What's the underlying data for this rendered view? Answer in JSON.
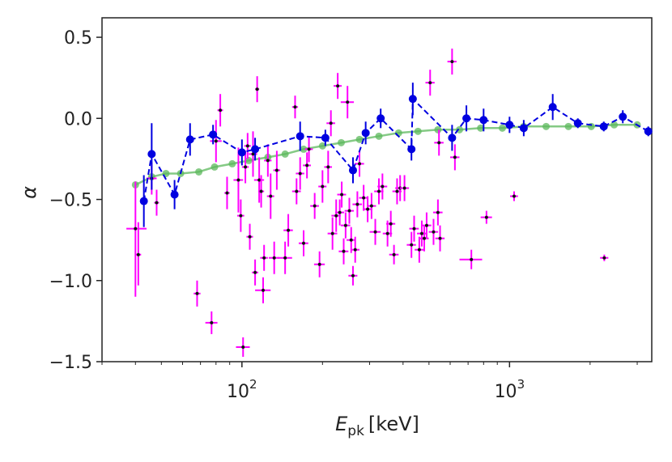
{
  "chart_data": {
    "type": "scatter",
    "title": "",
    "xlabel": "E_pk [keV]",
    "xlabel_main": "E",
    "xlabel_sub": "pk",
    "xlabel_unit": "[keV]",
    "ylabel": "α",
    "xscale": "log",
    "xlim": [
      30,
      3400
    ],
    "ylim": [
      -1.5,
      0.62
    ],
    "grid": false,
    "x_ticks": [
      {
        "value": 100,
        "base": "10",
        "exp": "2"
      },
      {
        "value": 1000,
        "base": "10",
        "exp": "3"
      }
    ],
    "y_ticks": [
      {
        "value": 0.5,
        "label": "0.5"
      },
      {
        "value": 0.0,
        "label": "0.0"
      },
      {
        "value": -0.5,
        "label": "−0.5"
      },
      {
        "value": -1.0,
        "label": "−1.0"
      },
      {
        "value": -1.5,
        "label": "−1.5"
      }
    ],
    "colors": {
      "points": "#ff00ff",
      "point_center": "#111111",
      "binned": "#0000e0",
      "smooth": "#5cb85c",
      "axes": "#222222"
    },
    "series": [
      {
        "kind": "points",
        "points": [
          {
            "x": 40,
            "y": -0.68,
            "xlo": 37,
            "xhi": 44,
            "ylo": -1.1,
            "yhi": -0.39
          },
          {
            "x": 41,
            "y": -0.84,
            "xlo": 40,
            "xhi": 42,
            "ylo": -1.03,
            "yhi": -0.64
          },
          {
            "x": 46,
            "y": -0.37,
            "xlo": 44,
            "xhi": 48,
            "ylo": -0.47,
            "yhi": -0.27
          },
          {
            "x": 48,
            "y": -0.52,
            "xlo": 47,
            "xhi": 49,
            "ylo": -0.6,
            "yhi": -0.44
          },
          {
            "x": 68,
            "y": -1.08,
            "xlo": 66,
            "xhi": 70,
            "ylo": -1.16,
            "yhi": -1.0
          },
          {
            "x": 77,
            "y": -1.26,
            "xlo": 73,
            "xhi": 81,
            "ylo": -1.33,
            "yhi": -1.19
          },
          {
            "x": 80,
            "y": -0.14,
            "xlo": 76,
            "xhi": 84,
            "ylo": -0.27,
            "yhi": -0.01
          },
          {
            "x": 83,
            "y": 0.05,
            "xlo": 81,
            "xhi": 85,
            "ylo": -0.05,
            "yhi": 0.15
          },
          {
            "x": 88,
            "y": -0.46,
            "xlo": 86,
            "xhi": 90,
            "ylo": -0.56,
            "yhi": -0.36
          },
          {
            "x": 97,
            "y": -0.38,
            "xlo": 93,
            "xhi": 101,
            "ylo": -0.58,
            "yhi": -0.18
          },
          {
            "x": 99,
            "y": -0.6,
            "xlo": 96,
            "xhi": 102,
            "ylo": -0.7,
            "yhi": -0.5
          },
          {
            "x": 101,
            "y": -1.41,
            "xlo": 95,
            "xhi": 107,
            "ylo": -1.47,
            "yhi": -1.35
          },
          {
            "x": 103,
            "y": -0.3,
            "xlo": 100,
            "xhi": 106,
            "ylo": -0.4,
            "yhi": -0.2
          },
          {
            "x": 105,
            "y": -0.17,
            "xlo": 102,
            "xhi": 108,
            "ylo": -0.25,
            "yhi": -0.09
          },
          {
            "x": 107,
            "y": -0.73,
            "xlo": 104,
            "xhi": 110,
            "ylo": -0.81,
            "yhi": -0.65
          },
          {
            "x": 110,
            "y": -0.22,
            "xlo": 106,
            "xhi": 114,
            "ylo": -0.36,
            "yhi": -0.08
          },
          {
            "x": 112,
            "y": -0.95,
            "xlo": 109,
            "xhi": 115,
            "ylo": -1.03,
            "yhi": -0.87
          },
          {
            "x": 114,
            "y": 0.18,
            "xlo": 112,
            "xhi": 116,
            "ylo": 0.1,
            "yhi": 0.26
          },
          {
            "x": 116,
            "y": -0.38,
            "xlo": 111,
            "xhi": 121,
            "ylo": -0.52,
            "yhi": -0.24
          },
          {
            "x": 118,
            "y": -0.45,
            "xlo": 115,
            "xhi": 121,
            "ylo": -0.55,
            "yhi": -0.35
          },
          {
            "x": 120,
            "y": -1.06,
            "xlo": 112,
            "xhi": 128,
            "ylo": -1.14,
            "yhi": -0.98
          },
          {
            "x": 121,
            "y": -0.86,
            "xlo": 117,
            "xhi": 125,
            "ylo": -0.94,
            "yhi": -0.78
          },
          {
            "x": 125,
            "y": -0.26,
            "xlo": 121,
            "xhi": 129,
            "ylo": -0.36,
            "yhi": -0.16
          },
          {
            "x": 128,
            "y": -0.48,
            "xlo": 124,
            "xhi": 132,
            "ylo": -0.62,
            "yhi": -0.34
          },
          {
            "x": 132,
            "y": -0.86,
            "xlo": 126,
            "xhi": 138,
            "ylo": -0.96,
            "yhi": -0.76
          },
          {
            "x": 135,
            "y": -0.32,
            "xlo": 131,
            "xhi": 139,
            "ylo": -0.44,
            "yhi": -0.2
          },
          {
            "x": 145,
            "y": -0.86,
            "xlo": 136,
            "xhi": 154,
            "ylo": -0.96,
            "yhi": -0.76
          },
          {
            "x": 149,
            "y": -0.69,
            "xlo": 143,
            "xhi": 155,
            "ylo": -0.79,
            "yhi": -0.59
          },
          {
            "x": 158,
            "y": 0.07,
            "xlo": 154,
            "xhi": 162,
            "ylo": 0.0,
            "yhi": 0.14
          },
          {
            "x": 160,
            "y": -0.45,
            "xlo": 154,
            "xhi": 166,
            "ylo": -0.53,
            "yhi": -0.37
          },
          {
            "x": 165,
            "y": -0.34,
            "xlo": 159,
            "xhi": 171,
            "ylo": -0.44,
            "yhi": -0.24
          },
          {
            "x": 170,
            "y": -0.77,
            "xlo": 163,
            "xhi": 177,
            "ylo": -0.85,
            "yhi": -0.69
          },
          {
            "x": 175,
            "y": -0.29,
            "xlo": 169,
            "xhi": 181,
            "ylo": -0.37,
            "yhi": -0.21
          },
          {
            "x": 178,
            "y": -0.19,
            "xlo": 172,
            "xhi": 184,
            "ylo": -0.27,
            "yhi": -0.11
          },
          {
            "x": 187,
            "y": -0.54,
            "xlo": 180,
            "xhi": 194,
            "ylo": -0.62,
            "yhi": -0.46
          },
          {
            "x": 195,
            "y": -0.9,
            "xlo": 186,
            "xhi": 204,
            "ylo": -0.98,
            "yhi": -0.82
          },
          {
            "x": 200,
            "y": -0.42,
            "xlo": 193,
            "xhi": 207,
            "ylo": -0.52,
            "yhi": -0.32
          },
          {
            "x": 210,
            "y": -0.3,
            "xlo": 203,
            "xhi": 217,
            "ylo": -0.4,
            "yhi": -0.2
          },
          {
            "x": 215,
            "y": -0.03,
            "xlo": 207,
            "xhi": 223,
            "ylo": -0.11,
            "yhi": 0.05
          },
          {
            "x": 218,
            "y": -0.71,
            "xlo": 209,
            "xhi": 227,
            "ylo": -0.81,
            "yhi": -0.61
          },
          {
            "x": 225,
            "y": -0.6,
            "xlo": 216,
            "xhi": 234,
            "ylo": -0.7,
            "yhi": -0.5
          },
          {
            "x": 228,
            "y": 0.2,
            "xlo": 220,
            "xhi": 236,
            "ylo": 0.12,
            "yhi": 0.28
          },
          {
            "x": 232,
            "y": -0.58,
            "xlo": 223,
            "xhi": 241,
            "ylo": -0.66,
            "yhi": -0.5
          },
          {
            "x": 236,
            "y": -0.47,
            "xlo": 227,
            "xhi": 245,
            "ylo": -0.55,
            "yhi": -0.39
          },
          {
            "x": 240,
            "y": -0.82,
            "xlo": 230,
            "xhi": 250,
            "ylo": -0.9,
            "yhi": -0.74
          },
          {
            "x": 244,
            "y": -0.66,
            "xlo": 234,
            "xhi": 254,
            "ylo": -0.74,
            "yhi": -0.58
          },
          {
            "x": 248,
            "y": 0.1,
            "xlo": 234,
            "xhi": 262,
            "ylo": 0.0,
            "yhi": 0.2
          },
          {
            "x": 252,
            "y": -0.57,
            "xlo": 242,
            "xhi": 262,
            "ylo": -0.65,
            "yhi": -0.49
          },
          {
            "x": 256,
            "y": -0.75,
            "xlo": 246,
            "xhi": 266,
            "ylo": -0.83,
            "yhi": -0.67
          },
          {
            "x": 260,
            "y": -0.97,
            "xlo": 250,
            "xhi": 270,
            "ylo": -1.03,
            "yhi": -0.91
          },
          {
            "x": 265,
            "y": -0.81,
            "xlo": 255,
            "xhi": 275,
            "ylo": -0.89,
            "yhi": -0.73
          },
          {
            "x": 270,
            "y": -0.53,
            "xlo": 259,
            "xhi": 281,
            "ylo": -0.61,
            "yhi": -0.45
          },
          {
            "x": 275,
            "y": -0.28,
            "xlo": 264,
            "xhi": 286,
            "ylo": -0.36,
            "yhi": -0.2
          },
          {
            "x": 285,
            "y": -0.49,
            "xlo": 274,
            "xhi": 296,
            "ylo": -0.57,
            "yhi": -0.41
          },
          {
            "x": 295,
            "y": -0.56,
            "xlo": 283,
            "xhi": 307,
            "ylo": -0.64,
            "yhi": -0.48
          },
          {
            "x": 305,
            "y": -0.54,
            "xlo": 293,
            "xhi": 317,
            "ylo": -0.62,
            "yhi": -0.46
          },
          {
            "x": 315,
            "y": -0.7,
            "xlo": 300,
            "xhi": 330,
            "ylo": -0.78,
            "yhi": -0.62
          },
          {
            "x": 325,
            "y": -0.45,
            "xlo": 312,
            "xhi": 338,
            "ylo": -0.53,
            "yhi": -0.37
          },
          {
            "x": 335,
            "y": -0.42,
            "xlo": 321,
            "xhi": 349,
            "ylo": -0.5,
            "yhi": -0.34
          },
          {
            "x": 350,
            "y": -0.71,
            "xlo": 336,
            "xhi": 364,
            "ylo": -0.79,
            "yhi": -0.63
          },
          {
            "x": 360,
            "y": -0.65,
            "xlo": 346,
            "xhi": 374,
            "ylo": -0.73,
            "yhi": -0.57
          },
          {
            "x": 370,
            "y": -0.84,
            "xlo": 355,
            "xhi": 385,
            "ylo": -0.9,
            "yhi": -0.78
          },
          {
            "x": 380,
            "y": -0.45,
            "xlo": 365,
            "xhi": 395,
            "ylo": -0.53,
            "yhi": -0.37
          },
          {
            "x": 390,
            "y": -0.43,
            "xlo": 374,
            "xhi": 406,
            "ylo": -0.51,
            "yhi": -0.35
          },
          {
            "x": 405,
            "y": -0.43,
            "xlo": 389,
            "xhi": 421,
            "ylo": -0.51,
            "yhi": -0.35
          },
          {
            "x": 430,
            "y": -0.78,
            "xlo": 413,
            "xhi": 447,
            "ylo": -0.86,
            "yhi": -0.7
          },
          {
            "x": 440,
            "y": -0.68,
            "xlo": 422,
            "xhi": 458,
            "ylo": -0.76,
            "yhi": -0.6
          },
          {
            "x": 460,
            "y": -0.81,
            "xlo": 442,
            "xhi": 478,
            "ylo": -0.89,
            "yhi": -0.73
          },
          {
            "x": 470,
            "y": -0.71,
            "xlo": 451,
            "xhi": 489,
            "ylo": -0.79,
            "yhi": -0.63
          },
          {
            "x": 480,
            "y": -0.74,
            "xlo": 461,
            "xhi": 499,
            "ylo": -0.82,
            "yhi": -0.66
          },
          {
            "x": 490,
            "y": -0.66,
            "xlo": 470,
            "xhi": 510,
            "ylo": -0.74,
            "yhi": -0.58
          },
          {
            "x": 505,
            "y": 0.22,
            "xlo": 485,
            "xhi": 525,
            "ylo": 0.14,
            "yhi": 0.3
          },
          {
            "x": 520,
            "y": -0.7,
            "xlo": 499,
            "xhi": 541,
            "ylo": -0.78,
            "yhi": -0.62
          },
          {
            "x": 540,
            "y": -0.58,
            "xlo": 518,
            "xhi": 562,
            "ylo": -0.66,
            "yhi": -0.5
          },
          {
            "x": 550,
            "y": -0.74,
            "xlo": 528,
            "xhi": 572,
            "ylo": -0.82,
            "yhi": -0.66
          },
          {
            "x": 545,
            "y": -0.15,
            "xlo": 523,
            "xhi": 567,
            "ylo": -0.23,
            "yhi": -0.07
          },
          {
            "x": 610,
            "y": 0.35,
            "xlo": 586,
            "xhi": 634,
            "ylo": 0.27,
            "yhi": 0.43
          },
          {
            "x": 625,
            "y": -0.24,
            "xlo": 600,
            "xhi": 650,
            "ylo": -0.32,
            "yhi": -0.16
          },
          {
            "x": 720,
            "y": -0.87,
            "xlo": 650,
            "xhi": 790,
            "ylo": -0.93,
            "yhi": -0.81
          },
          {
            "x": 820,
            "y": -0.61,
            "xlo": 780,
            "xhi": 860,
            "ylo": -0.65,
            "yhi": -0.57
          },
          {
            "x": 1040,
            "y": -0.48,
            "xlo": 1005,
            "xhi": 1075,
            "ylo": -0.51,
            "yhi": -0.45
          },
          {
            "x": 2260,
            "y": -0.86,
            "xlo": 2180,
            "xhi": 2340,
            "ylo": -0.88,
            "yhi": -0.84
          }
        ]
      },
      {
        "kind": "binned",
        "points": [
          {
            "x": 43,
            "y": -0.51,
            "ylo": -0.67,
            "yhi": -0.35
          },
          {
            "x": 46,
            "y": -0.22,
            "ylo": -0.44,
            "yhi": -0.03
          },
          {
            "x": 56,
            "y": -0.47,
            "ylo": -0.56,
            "yhi": -0.38
          },
          {
            "x": 64,
            "y": -0.13,
            "ylo": -0.23,
            "yhi": -0.03
          },
          {
            "x": 78,
            "y": -0.1,
            "ylo": -0.16,
            "yhi": -0.04
          },
          {
            "x": 100,
            "y": -0.21,
            "ylo": -0.29,
            "yhi": -0.13
          },
          {
            "x": 112,
            "y": -0.19,
            "ylo": -0.26,
            "yhi": -0.12
          },
          {
            "x": 165,
            "y": -0.11,
            "ylo": -0.2,
            "yhi": -0.02
          },
          {
            "x": 205,
            "y": -0.12,
            "ylo": -0.17,
            "yhi": -0.07
          },
          {
            "x": 260,
            "y": -0.32,
            "ylo": -0.4,
            "yhi": -0.24
          },
          {
            "x": 290,
            "y": -0.09,
            "ylo": -0.16,
            "yhi": -0.02
          },
          {
            "x": 330,
            "y": 0.0,
            "ylo": -0.06,
            "yhi": 0.06
          },
          {
            "x": 430,
            "y": -0.19,
            "ylo": -0.26,
            "yhi": -0.12
          },
          {
            "x": 435,
            "y": 0.12,
            "ylo": 0.02,
            "yhi": 0.22
          },
          {
            "x": 610,
            "y": -0.12,
            "ylo": -0.2,
            "yhi": -0.04
          },
          {
            "x": 690,
            "y": 0.0,
            "ylo": -0.08,
            "yhi": 0.08
          },
          {
            "x": 800,
            "y": -0.01,
            "ylo": -0.08,
            "yhi": 0.06
          },
          {
            "x": 1000,
            "y": -0.04,
            "ylo": -0.09,
            "yhi": 0.01
          },
          {
            "x": 1130,
            "y": -0.06,
            "ylo": -0.11,
            "yhi": -0.01
          },
          {
            "x": 1450,
            "y": 0.07,
            "ylo": -0.01,
            "yhi": 0.15
          },
          {
            "x": 1800,
            "y": -0.03,
            "ylo": -0.06,
            "yhi": 0.0
          },
          {
            "x": 2250,
            "y": -0.05,
            "ylo": -0.08,
            "yhi": -0.02
          },
          {
            "x": 2650,
            "y": 0.01,
            "ylo": -0.03,
            "yhi": 0.05
          },
          {
            "x": 3300,
            "y": -0.08,
            "ylo": -0.11,
            "yhi": -0.05
          }
        ]
      },
      {
        "kind": "smooth",
        "points": [
          {
            "x": 40,
            "y": -0.41
          },
          {
            "x": 46,
            "y": -0.36
          },
          {
            "x": 52,
            "y": -0.34
          },
          {
            "x": 59,
            "y": -0.34
          },
          {
            "x": 69,
            "y": -0.33
          },
          {
            "x": 79,
            "y": -0.3
          },
          {
            "x": 92,
            "y": -0.28
          },
          {
            "x": 106,
            "y": -0.26
          },
          {
            "x": 125,
            "y": -0.24
          },
          {
            "x": 145,
            "y": -0.22
          },
          {
            "x": 170,
            "y": -0.19
          },
          {
            "x": 200,
            "y": -0.17
          },
          {
            "x": 235,
            "y": -0.15
          },
          {
            "x": 275,
            "y": -0.13
          },
          {
            "x": 325,
            "y": -0.11
          },
          {
            "x": 385,
            "y": -0.09
          },
          {
            "x": 455,
            "y": -0.08
          },
          {
            "x": 540,
            "y": -0.07
          },
          {
            "x": 650,
            "y": -0.07
          },
          {
            "x": 780,
            "y": -0.06
          },
          {
            "x": 940,
            "y": -0.06
          },
          {
            "x": 1130,
            "y": -0.05
          },
          {
            "x": 1370,
            "y": -0.05
          },
          {
            "x": 1660,
            "y": -0.05
          },
          {
            "x": 2020,
            "y": -0.05
          },
          {
            "x": 2460,
            "y": -0.04
          },
          {
            "x": 3000,
            "y": -0.04
          }
        ]
      }
    ]
  }
}
